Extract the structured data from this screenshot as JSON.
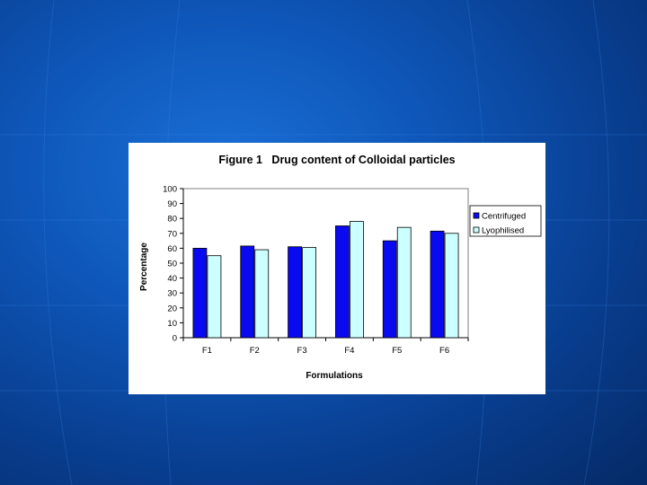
{
  "slide": {
    "background_color": "#0a4aa8"
  },
  "chart_data": {
    "type": "bar",
    "title": "Figure 1   Drug content of Colloidal particles",
    "xlabel": "Formulations",
    "ylabel": "Percentage",
    "categories": [
      "F1",
      "F2",
      "F3",
      "F4",
      "F5",
      "F6"
    ],
    "series": [
      {
        "name": "Centrifuged",
        "color": "#0a0af0",
        "values": [
          60,
          61.5,
          61,
          75,
          65,
          71.5
        ]
      },
      {
        "name": "Lyophilised",
        "color": "#ccffff",
        "values": [
          55,
          59,
          60.5,
          78,
          74,
          70
        ]
      }
    ],
    "ylim": [
      0,
      100
    ],
    "yticks": [
      0,
      10,
      20,
      30,
      40,
      50,
      60,
      70,
      80,
      90,
      100
    ],
    "grid": false,
    "legend_position": "right"
  }
}
